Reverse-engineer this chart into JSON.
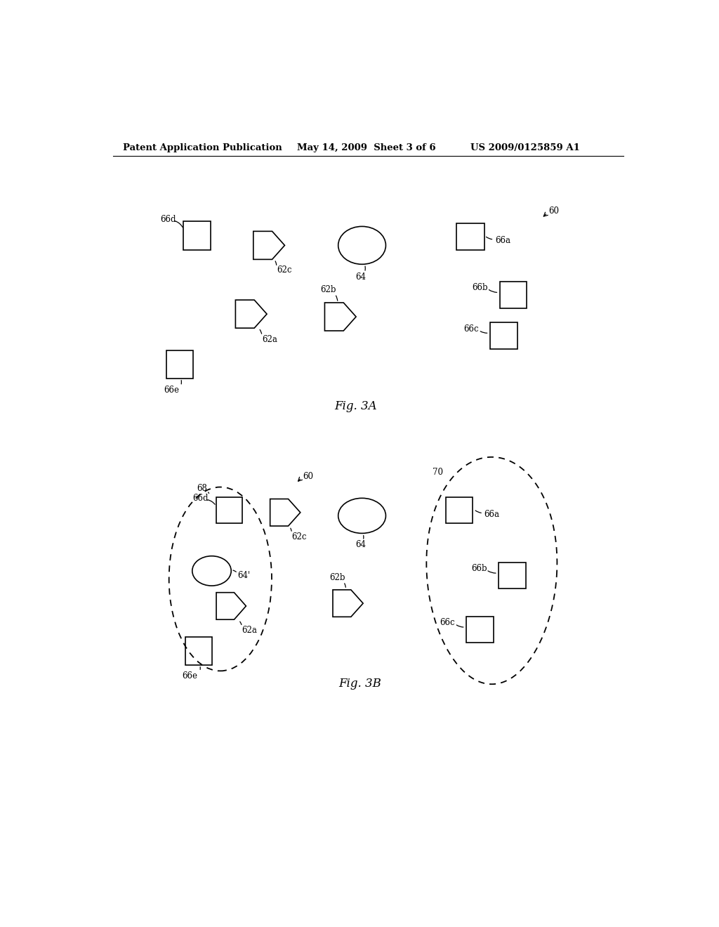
{
  "bg_color": "#ffffff",
  "header_left": "Patent Application Publication",
  "header_mid": "May 14, 2009  Sheet 3 of 6",
  "header_right": "US 2009/0125859 A1",
  "fig3a_label": "Fig. 3A",
  "fig3b_label": "Fig. 3B"
}
